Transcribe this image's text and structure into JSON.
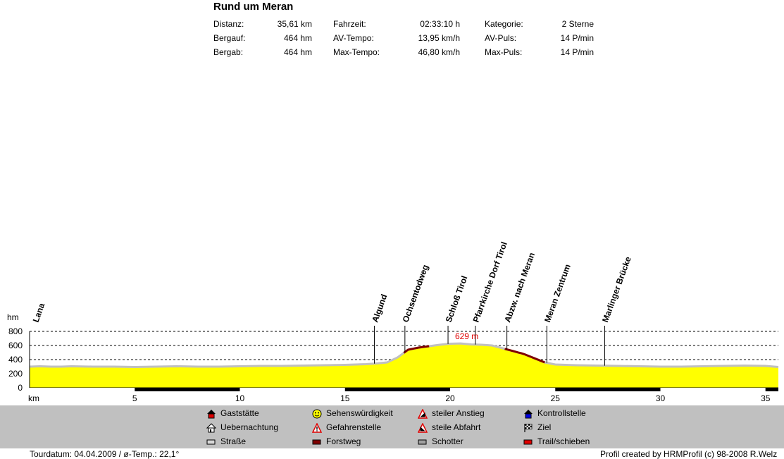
{
  "title": "Rund um Meran",
  "stats": [
    {
      "label": "Distanz:",
      "value": "35,61 km"
    },
    {
      "label": "Bergauf:",
      "value": "464 hm"
    },
    {
      "label": "Bergab:",
      "value": "464 hm"
    },
    {
      "label": "Fahrzeit:",
      "value": "02:33:10 h"
    },
    {
      "label": "AV-Tempo:",
      "value": "13,95 km/h"
    },
    {
      "label": "Max-Tempo:",
      "value": "46,80 km/h"
    },
    {
      "label": "Kategorie:",
      "value": "2 Sterne"
    },
    {
      "label": "AV-Puls:",
      "value": "14 P/min"
    },
    {
      "label": "Max-Puls:",
      "value": "14 P/min"
    }
  ],
  "legend": [
    {
      "label": "Gaststätte",
      "icon": "restaurant-icon"
    },
    {
      "label": "Uebernachtung",
      "icon": "lodging-icon"
    },
    {
      "label": "Straße",
      "icon": "road-surface-icon",
      "color": "#d8d8d8"
    },
    {
      "label": "Sehenswürdigkeit",
      "icon": "sight-smiley-icon"
    },
    {
      "label": "Gefahrenstelle",
      "icon": "danger-icon"
    },
    {
      "label": "Forstweg",
      "icon": "forest-road-icon",
      "color": "#800000"
    },
    {
      "label": "steiler Anstieg",
      "icon": "steep-climb-icon"
    },
    {
      "label": "steile Abfahrt",
      "icon": "steep-descent-icon"
    },
    {
      "label": "Schotter",
      "icon": "gravel-icon",
      "color": "#a0a0a0"
    },
    {
      "label": "Kontrollstelle",
      "icon": "checkpoint-icon"
    },
    {
      "label": "Ziel",
      "icon": "finish-flag-icon"
    },
    {
      "label": "Trail/schieben",
      "icon": "trail-icon",
      "color": "#e00000"
    }
  ],
  "footer": {
    "left": "Tourdatum: 04.04.2009  /  ø-Temp.: 22,1°",
    "right": "Profil created by HRMProfil (c) 98-2008 R.Welz"
  },
  "chart_data": {
    "type": "area",
    "ylabel": "hm",
    "xlabel": "km",
    "xlim": [
      0,
      35.61
    ],
    "ylim": [
      0,
      800
    ],
    "yticks": [
      0,
      200,
      400,
      600,
      800
    ],
    "xticks": [
      5,
      10,
      15,
      20,
      25,
      30,
      35
    ],
    "grid": "dashed horizontal",
    "fill_color": "#ffff00",
    "surface_color": "#c0c0c0",
    "max_label": "629 m",
    "x": [
      0,
      0.5,
      1,
      1.5,
      2,
      3,
      4,
      5,
      6,
      7,
      8,
      9,
      10,
      11,
      12,
      13,
      14,
      15,
      15.5,
      16,
      16.5,
      17,
      17.5,
      18,
      18.5,
      19,
      19.5,
      20,
      20.5,
      21,
      21.5,
      22,
      22.5,
      23,
      23.5,
      24,
      24.5,
      25,
      26,
      27,
      28,
      29,
      30,
      31,
      32,
      33,
      34,
      35,
      35.61
    ],
    "elevation": [
      300,
      305,
      300,
      300,
      305,
      300,
      300,
      295,
      300,
      305,
      300,
      300,
      305,
      310,
      310,
      315,
      320,
      325,
      330,
      335,
      345,
      360,
      430,
      540,
      570,
      590,
      610,
      625,
      629,
      615,
      610,
      600,
      560,
      520,
      480,
      420,
      360,
      330,
      320,
      315,
      310,
      305,
      300,
      300,
      305,
      310,
      315,
      310,
      295
    ],
    "segments": [
      {
        "type": "Forstweg",
        "x": [
          17.8,
          19
        ]
      },
      {
        "type": "Forstweg",
        "x": [
          22.6,
          24.5
        ]
      }
    ],
    "waypoints": [
      {
        "label": "Lana",
        "km": 0
      },
      {
        "label": "Algund",
        "km": 16.4
      },
      {
        "label": "Ochsentodweg",
        "km": 17.85
      },
      {
        "label": "Schloß Tirol",
        "km": 19.9
      },
      {
        "label": "Pfarrkirche Dorf Tirol",
        "km": 21.2
      },
      {
        "label": "Abzw. nach Meran",
        "km": 22.7
      },
      {
        "label": "Meran Zentrum",
        "km": 24.6
      },
      {
        "label": "Marlinger Brücke",
        "km": 27.35
      }
    ]
  }
}
